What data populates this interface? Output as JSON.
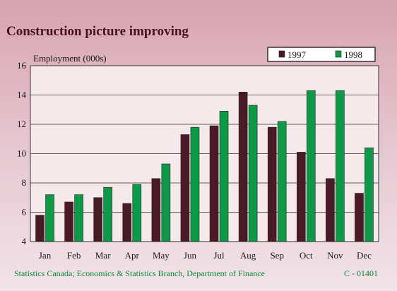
{
  "title": "Construction picture improving",
  "source": "Statistics Canada; Economics & Statistics Branch, Department of Finance",
  "code": "C - 01401",
  "chart_data": {
    "type": "bar",
    "ylabel": "Employment (000s)",
    "xlabel": "",
    "ylim": [
      4,
      16
    ],
    "yticks": [
      4,
      6,
      8,
      10,
      12,
      14,
      16
    ],
    "grid": true,
    "legend_position": "top-right",
    "categories": [
      "Jan",
      "Feb",
      "Mar",
      "Apr",
      "May",
      "Jun",
      "Jul",
      "Aug",
      "Sep",
      "Oct",
      "Nov",
      "Dec"
    ],
    "series": [
      {
        "name": "1997",
        "color": "#4a1a26",
        "values": [
          5.8,
          6.7,
          7.0,
          6.6,
          8.3,
          11.3,
          11.9,
          14.2,
          11.8,
          10.1,
          8.3,
          7.3
        ]
      },
      {
        "name": "1998",
        "color": "#0a9a48",
        "values": [
          7.2,
          7.2,
          7.7,
          7.9,
          9.3,
          11.8,
          12.9,
          13.3,
          12.2,
          14.3,
          14.3,
          10.4
        ]
      }
    ]
  }
}
